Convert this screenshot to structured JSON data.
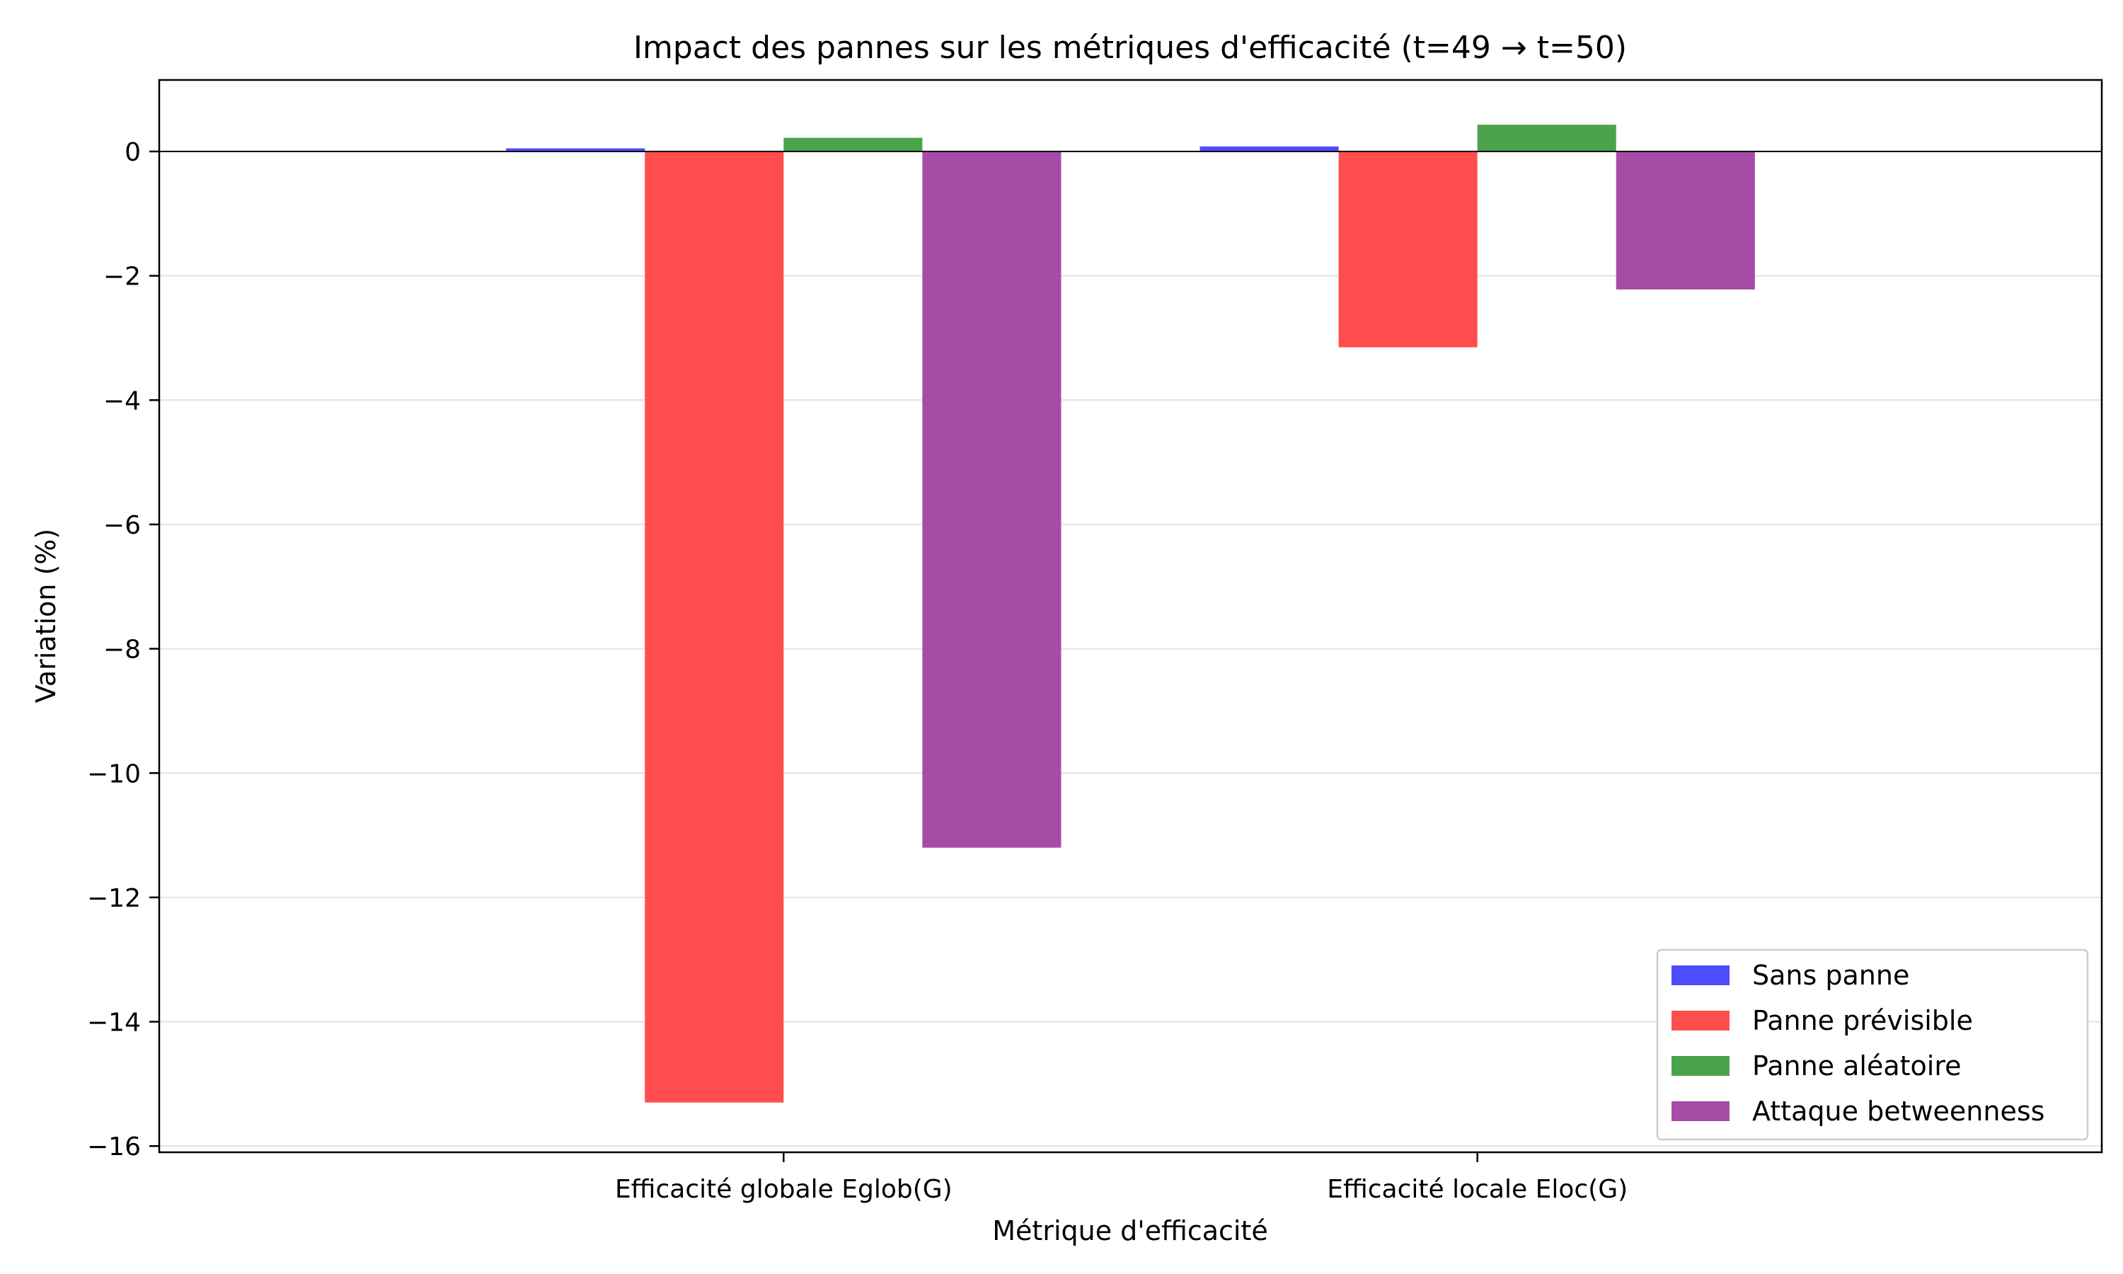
{
  "chart_data": {
    "type": "bar",
    "title": "Impact des pannes sur les métriques d'efficacité (t=49 → t=50)",
    "xlabel": "Métrique d'efficacité",
    "ylabel": "Variation (%)",
    "categories": [
      "Efficacité globale Eglob(G)",
      "Efficacité locale Eloc(G)"
    ],
    "series": [
      {
        "name": "Sans panne",
        "color": "#4d4dff",
        "values": [
          0.05,
          0.08
        ]
      },
      {
        "name": "Panne prévisible",
        "color": "#ff4d4d",
        "values": [
          -15.3,
          -3.15
        ]
      },
      {
        "name": "Panne aléatoire",
        "color": "#4aa34a",
        "values": [
          0.22,
          0.43
        ]
      },
      {
        "name": "Attaque betweenness",
        "color": "#a64ca6",
        "values": [
          -11.2,
          -2.22
        ]
      }
    ],
    "ylim": [
      -16.1,
      1.15
    ],
    "yticks": [
      0,
      -2,
      -4,
      -6,
      -8,
      -10,
      -12,
      -14,
      -16
    ],
    "ytick_labels": [
      "0",
      "−2",
      "−4",
      "−6",
      "−8",
      "−10",
      "−12",
      "−14",
      "−16"
    ],
    "grid": "y",
    "legend_position": "lower-right"
  }
}
